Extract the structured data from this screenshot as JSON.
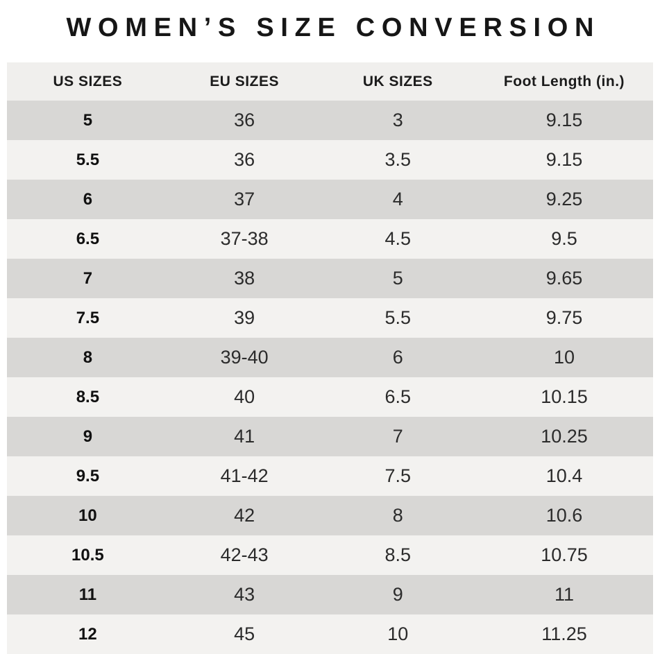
{
  "title": "WOMEN’S SIZE CONVERSION",
  "chart_data": {
    "type": "table",
    "title": "WOMEN’S SIZE CONVERSION",
    "columns": [
      "US SIZES",
      "EU SIZES",
      "UK SIZES",
      "Foot Length (in.)"
    ],
    "rows": [
      [
        "5",
        "36",
        "3",
        "9.15"
      ],
      [
        "5.5",
        "36",
        "3.5",
        "9.15"
      ],
      [
        "6",
        "37",
        "4",
        "9.25"
      ],
      [
        "6.5",
        "37-38",
        "4.5",
        "9.5"
      ],
      [
        "7",
        "38",
        "5",
        "9.65"
      ],
      [
        "7.5",
        "39",
        "5.5",
        "9.75"
      ],
      [
        "8",
        "39-40",
        "6",
        "10"
      ],
      [
        "8.5",
        "40",
        "6.5",
        "10.15"
      ],
      [
        "9",
        "41",
        "7",
        "10.25"
      ],
      [
        "9.5",
        "41-42",
        "7.5",
        "10.4"
      ],
      [
        "10",
        "42",
        "8",
        "10.6"
      ],
      [
        "10.5",
        "42-43",
        "8.5",
        "10.75"
      ],
      [
        "11",
        "43",
        "9",
        "11"
      ],
      [
        "12",
        "45",
        "10",
        "11.25"
      ]
    ],
    "layout": {
      "row_striping": "first data row dark, alternating",
      "column_widths_pct": [
        25,
        23.5,
        24,
        27.5
      ]
    }
  },
  "colors": {
    "page_bg": "#ffffff",
    "header_bg": "#f0efed",
    "row_dark": "#d8d7d5",
    "row_light": "#f3f2f0",
    "title_text": "#161616",
    "cell_text": "#2b2b2b"
  }
}
